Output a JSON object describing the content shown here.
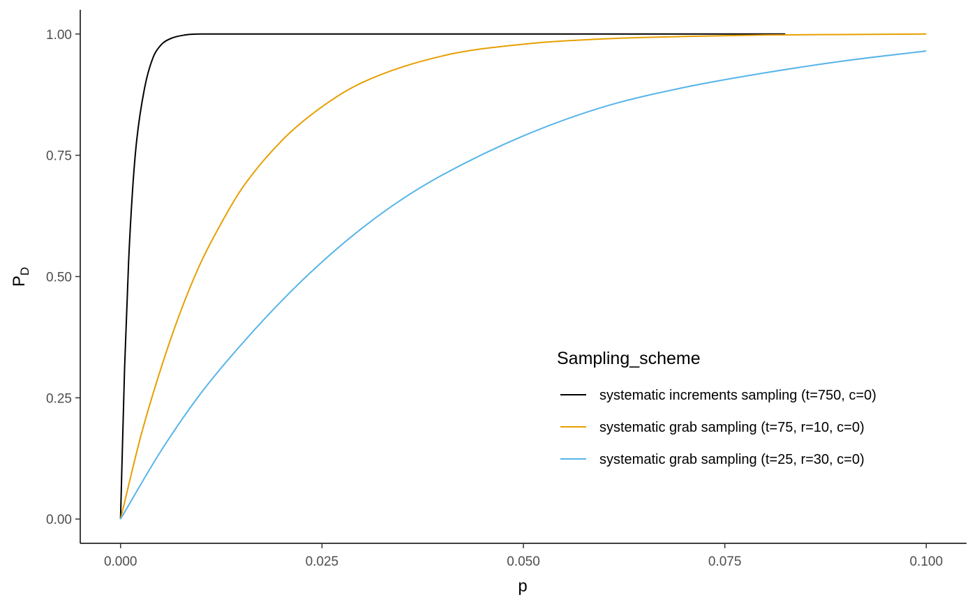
{
  "chart_data": {
    "type": "line",
    "title": "",
    "xlabel": "p",
    "ylabel": {
      "main": "P",
      "sub": "D"
    },
    "xlim": [
      -0.005,
      0.105
    ],
    "ylim": [
      -0.05,
      1.05
    ],
    "x_ticks": [
      0.0,
      0.025,
      0.05,
      0.075,
      0.1
    ],
    "x_tick_labels": [
      "0.000",
      "0.025",
      "0.050",
      "0.075",
      "0.100"
    ],
    "y_ticks": [
      0.0,
      0.25,
      0.5,
      0.75,
      1.0
    ],
    "y_tick_labels": [
      "0.00",
      "0.25",
      "0.50",
      "0.75",
      "1.00"
    ],
    "grid": false,
    "legend": {
      "title": "Sampling_scheme",
      "placement": "bottom-right inside plot"
    },
    "series": [
      {
        "name": "systematic increments sampling (t=750, c=0)",
        "color": "#000000",
        "x_end": 0.0825,
        "x": [
          0,
          0.0005,
          0.001,
          0.0015,
          0.002,
          0.003,
          0.004,
          0.005,
          0.006,
          0.008,
          0.01,
          0.02,
          0.04,
          0.06,
          0.0825
        ],
        "y": [
          0,
          0.31,
          0.53,
          0.68,
          0.78,
          0.89,
          0.95,
          0.977,
          0.989,
          0.998,
          1.0,
          1.0,
          1.0,
          1.0,
          1.0
        ]
      },
      {
        "name": "systematic grab sampling (t=75, r=10, c=0)",
        "color": "#E69F00",
        "x_end": 0.1,
        "x": [
          0,
          0.0025,
          0.005,
          0.0075,
          0.01,
          0.0125,
          0.015,
          0.02,
          0.025,
          0.03,
          0.04,
          0.05,
          0.06,
          0.07,
          0.08,
          0.09,
          0.1
        ],
        "y": [
          0,
          0.17,
          0.31,
          0.43,
          0.53,
          0.61,
          0.68,
          0.78,
          0.85,
          0.9,
          0.955,
          0.979,
          0.99,
          0.995,
          0.998,
          0.999,
          1.0
        ]
      },
      {
        "name": "systematic grab sampling (t=25, r=30, c=0)",
        "color": "#56B4E9",
        "x_end": 0.1,
        "x": [
          0,
          0.005,
          0.01,
          0.015,
          0.02,
          0.025,
          0.03,
          0.035,
          0.04,
          0.05,
          0.06,
          0.07,
          0.08,
          0.09,
          0.1
        ],
        "y": [
          0,
          0.14,
          0.26,
          0.36,
          0.45,
          0.53,
          0.6,
          0.66,
          0.71,
          0.79,
          0.85,
          0.89,
          0.92,
          0.945,
          0.965
        ]
      }
    ]
  }
}
